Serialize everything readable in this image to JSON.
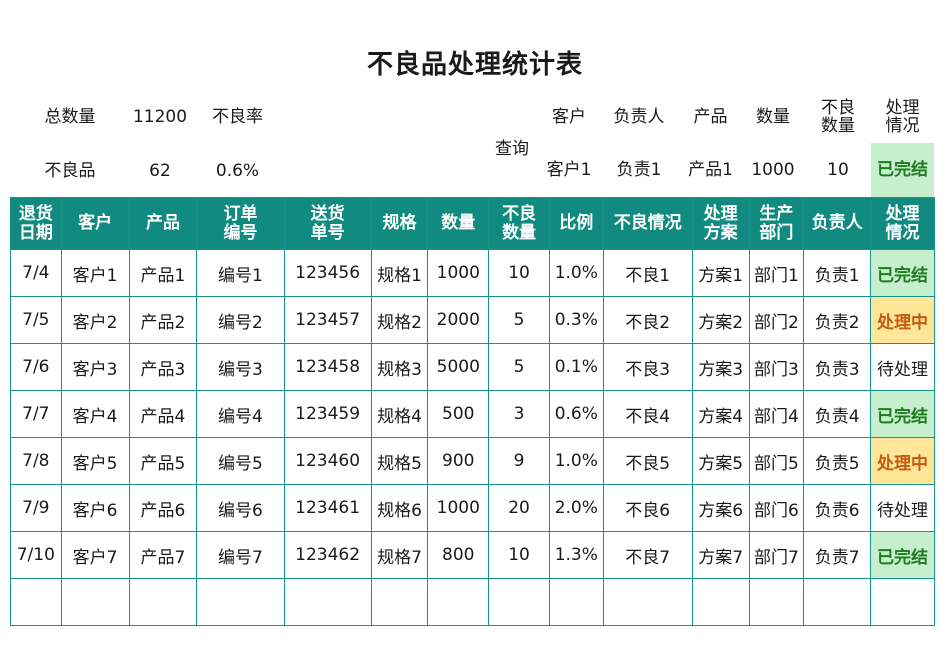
{
  "title": "不良品处理统计表",
  "summary": {
    "total_label": "总数量",
    "total_value": "11200",
    "rate_label": "不良率",
    "defect_label": "不良品",
    "defect_value": "62",
    "rate_value": "0.6%"
  },
  "query": {
    "label": "查询",
    "headers": [
      "客户",
      "负责人",
      "产品",
      "数量",
      "不良\n数量",
      "处理\n情况"
    ],
    "values": [
      "客户1",
      "负责1",
      "产品1",
      "1000",
      "10",
      "已完结"
    ]
  },
  "table": {
    "headers": [
      "退货\n日期",
      "客户",
      "产品",
      "订单\n编号",
      "送货\n单号",
      "规格",
      "数量",
      "不良\n数量",
      "比例",
      "不良情况",
      "处理\n方案",
      "生产\n部门",
      "负责人",
      "处理\n情况"
    ],
    "rows": [
      [
        "7/4",
        "客户1",
        "产品1",
        "编号1",
        "123456",
        "规格1",
        "1000",
        "10",
        "1.0%",
        "不良1",
        "方案1",
        "部门1",
        "负责1",
        "已完结"
      ],
      [
        "7/5",
        "客户2",
        "产品2",
        "编号2",
        "123457",
        "规格2",
        "2000",
        "5",
        "0.3%",
        "不良2",
        "方案2",
        "部门2",
        "负责2",
        "处理中"
      ],
      [
        "7/6",
        "客户3",
        "产品3",
        "编号3",
        "123458",
        "规格3",
        "5000",
        "5",
        "0.1%",
        "不良3",
        "方案3",
        "部门3",
        "负责3",
        "待处理"
      ],
      [
        "7/7",
        "客户4",
        "产品4",
        "编号4",
        "123459",
        "规格4",
        "500",
        "3",
        "0.6%",
        "不良4",
        "方案4",
        "部门4",
        "负责4",
        "已完结"
      ],
      [
        "7/8",
        "客户5",
        "产品5",
        "编号5",
        "123460",
        "规格5",
        "900",
        "9",
        "1.0%",
        "不良5",
        "方案5",
        "部门5",
        "负责5",
        "处理中"
      ],
      [
        "7/9",
        "客户6",
        "产品6",
        "编号6",
        "123461",
        "规格6",
        "1000",
        "20",
        "2.0%",
        "不良6",
        "方案6",
        "部门6",
        "负责6",
        "待处理"
      ],
      [
        "7/10",
        "客户7",
        "产品7",
        "编号7",
        "123462",
        "规格7",
        "800",
        "10",
        "1.3%",
        "不良7",
        "方案7",
        "部门7",
        "负责7",
        "已完结"
      ],
      [
        "",
        "",
        "",
        "",
        "",
        "",
        "",
        "",
        "",
        "",
        "",
        "",
        "",
        ""
      ]
    ]
  },
  "status_colors": {
    "已完结": "#c6efce",
    "处理中": "#ffe699",
    "待处理": "#ffffff"
  },
  "header_color": "#118a80"
}
